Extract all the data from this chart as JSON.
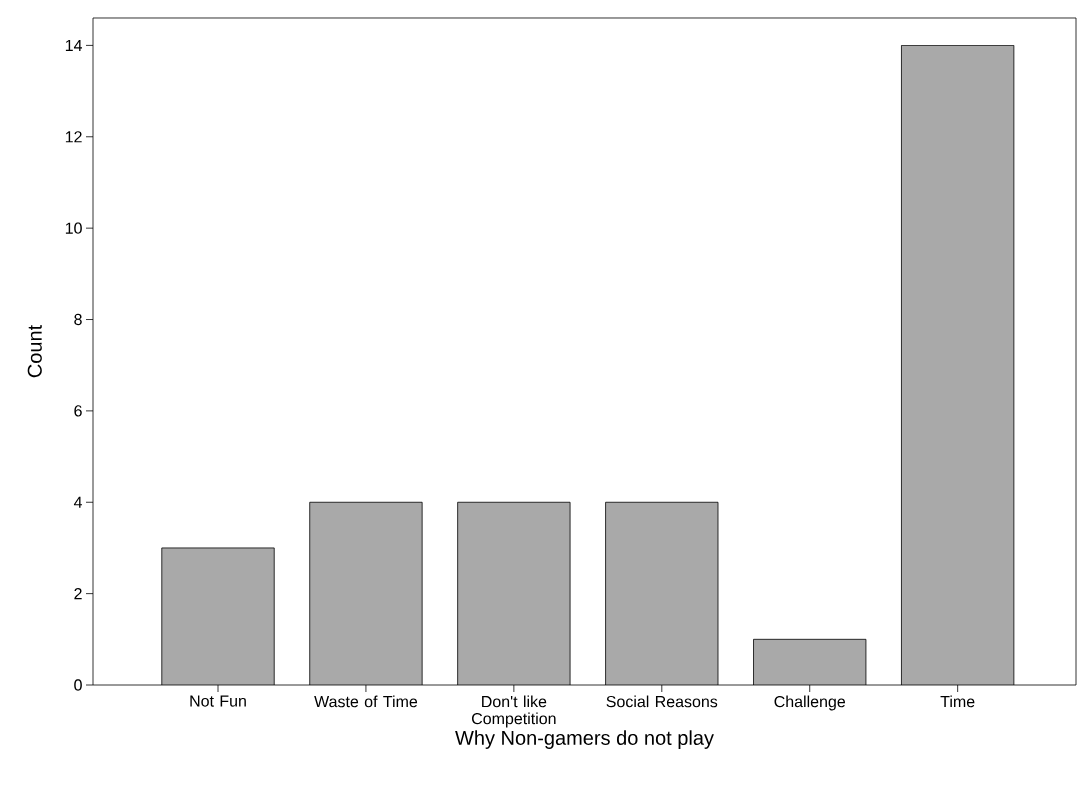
{
  "chart_data": {
    "type": "bar",
    "xlabel": "Why Non-gamers do not play",
    "ylabel": "Count",
    "categories": [
      "Not Fun",
      "Waste of Time",
      "Don't like Competition",
      "Social Reasons",
      "Challenge",
      "Time"
    ],
    "values": [
      3,
      4,
      4,
      4,
      1,
      14
    ],
    "color": "#a9a9a9",
    "ylim": [
      0,
      14.6
    ],
    "yticks": [
      0,
      2,
      4,
      6,
      8,
      10,
      12,
      14
    ],
    "grid": false
  }
}
